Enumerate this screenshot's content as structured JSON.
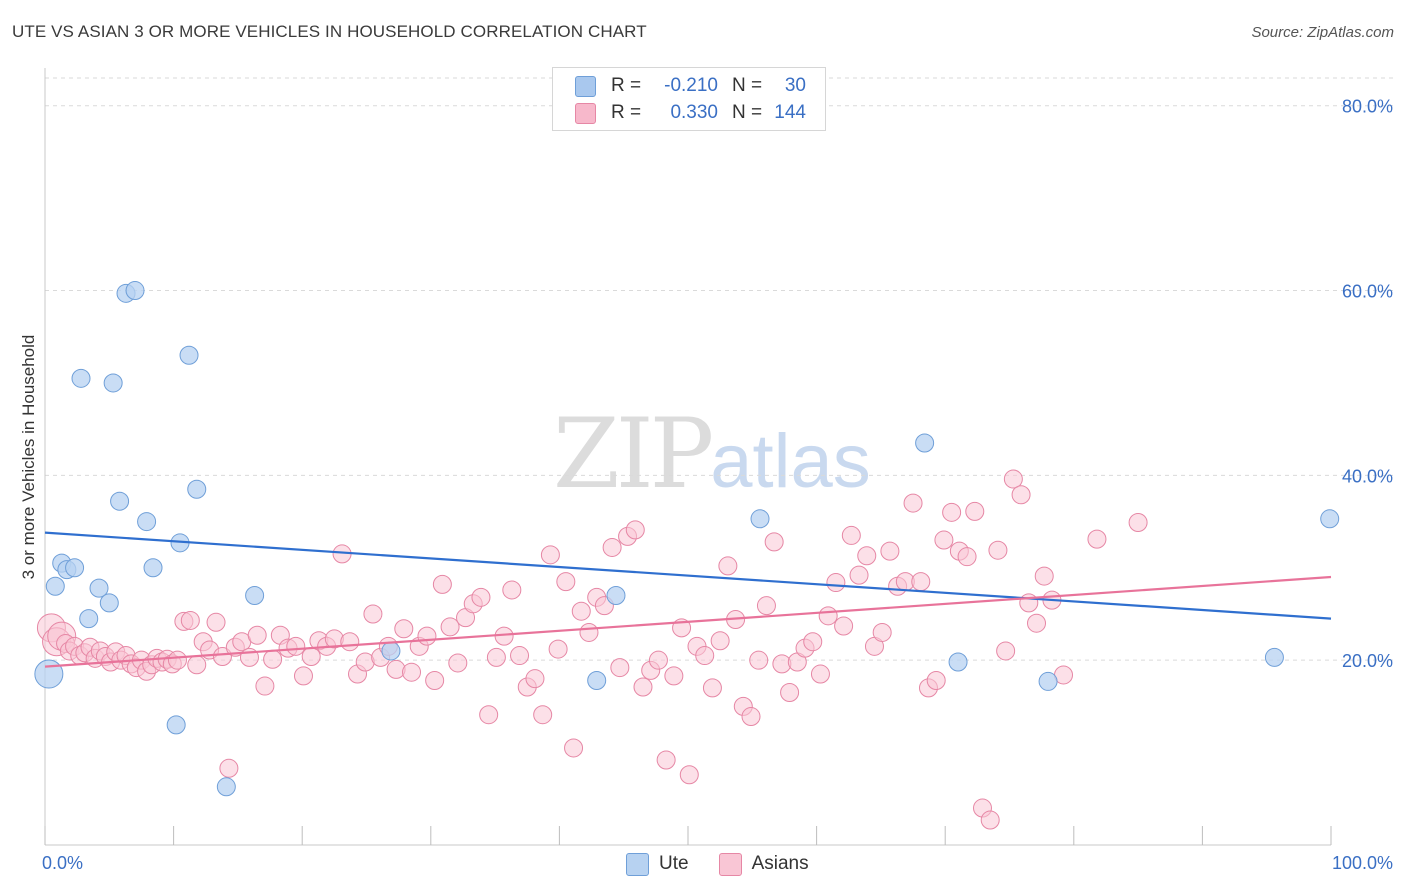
{
  "header": {
    "title": "UTE VS ASIAN 3 OR MORE VEHICLES IN HOUSEHOLD CORRELATION CHART",
    "source": "Source: ZipAtlas.com"
  },
  "watermark": {
    "zip": "ZIP",
    "atlas": "atlas"
  },
  "legend": {
    "rows": [
      {
        "r_label": "R =",
        "r_value": "-0.210",
        "n_label": "N =",
        "n_value": "30",
        "color": "#a9c8ee",
        "border": "#6f9fd8"
      },
      {
        "r_label": "R =",
        "r_value": "0.330",
        "n_label": "N =",
        "n_value": "144",
        "color": "#f7b8cb",
        "border": "#e687a5"
      }
    ]
  },
  "bottom_legend": [
    {
      "label": "Ute",
      "color": "#b7d2f1",
      "border": "#6f9fd8"
    },
    {
      "label": "Asians",
      "color": "#f9c6d5",
      "border": "#e687a5"
    }
  ],
  "chart_data": {
    "type": "scatter",
    "ylabel": "3 or more Vehicles in Household",
    "xlim": [
      0,
      100
    ],
    "ylim": [
      0,
      83
    ],
    "x_tick_labels": [
      "0.0%",
      "100.0%"
    ],
    "y_tick_labels": [
      "20.0%",
      "40.0%",
      "60.0%",
      "80.0%"
    ],
    "y_ticks": [
      20,
      40,
      60,
      80
    ],
    "grid": "horizontal dashed",
    "series": [
      {
        "name": "Ute",
        "color": "#6f9fd8",
        "fill": "#b7d2f1",
        "trend": {
          "start": [
            0,
            33.8
          ],
          "end": [
            100,
            24.5
          ],
          "color": "#2f6fcf"
        },
        "points": [
          [
            0.3,
            18.5
          ],
          [
            0.8,
            28.0
          ],
          [
            1.3,
            30.5
          ],
          [
            1.7,
            29.8
          ],
          [
            2.3,
            30.0
          ],
          [
            2.8,
            50.5
          ],
          [
            3.4,
            24.5
          ],
          [
            4.2,
            27.8
          ],
          [
            5.0,
            26.2
          ],
          [
            5.3,
            50.0
          ],
          [
            5.8,
            37.2
          ],
          [
            6.3,
            59.7
          ],
          [
            7.0,
            60.0
          ],
          [
            7.9,
            35.0
          ],
          [
            8.4,
            30.0
          ],
          [
            10.2,
            13.0
          ],
          [
            10.5,
            32.7
          ],
          [
            11.2,
            53.0
          ],
          [
            11.8,
            38.5
          ],
          [
            14.1,
            6.3
          ],
          [
            16.3,
            27.0
          ],
          [
            26.9,
            21.0
          ],
          [
            42.9,
            17.8
          ],
          [
            44.4,
            27.0
          ],
          [
            55.6,
            35.3
          ],
          [
            68.4,
            43.5
          ],
          [
            71.0,
            19.8
          ],
          [
            78.0,
            17.7
          ],
          [
            95.6,
            20.3
          ],
          [
            99.9,
            35.3
          ]
        ]
      },
      {
        "name": "Asians",
        "color": "#e687a5",
        "fill": "#f9c6d5",
        "trend": {
          "start": [
            0,
            19.3
          ],
          "end": [
            100,
            29.0
          ],
          "color": "#e8739a"
        },
        "points": [
          [
            0.5,
            23.5
          ],
          [
            0.9,
            22.0
          ],
          [
            1.3,
            22.6
          ],
          [
            1.6,
            21.8
          ],
          [
            1.9,
            21.0
          ],
          [
            2.3,
            21.5
          ],
          [
            2.7,
            20.5
          ],
          [
            3.1,
            20.8
          ],
          [
            3.5,
            21.4
          ],
          [
            3.9,
            20.2
          ],
          [
            4.3,
            21.0
          ],
          [
            4.7,
            20.4
          ],
          [
            5.1,
            19.8
          ],
          [
            5.5,
            20.9
          ],
          [
            5.9,
            20.0
          ],
          [
            6.3,
            20.5
          ],
          [
            6.7,
            19.6
          ],
          [
            7.1,
            19.2
          ],
          [
            7.5,
            20.0
          ],
          [
            7.9,
            18.8
          ],
          [
            8.3,
            19.5
          ],
          [
            8.7,
            20.2
          ],
          [
            9.1,
            19.8
          ],
          [
            9.5,
            20.1
          ],
          [
            9.9,
            19.6
          ],
          [
            10.3,
            20.0
          ],
          [
            10.8,
            24.2
          ],
          [
            11.3,
            24.3
          ],
          [
            11.8,
            19.5
          ],
          [
            12.3,
            22.0
          ],
          [
            12.8,
            21.1
          ],
          [
            13.3,
            24.1
          ],
          [
            13.8,
            20.4
          ],
          [
            14.3,
            8.3
          ],
          [
            14.8,
            21.4
          ],
          [
            15.3,
            22.0
          ],
          [
            15.9,
            20.3
          ],
          [
            16.5,
            22.7
          ],
          [
            17.1,
            17.2
          ],
          [
            17.7,
            20.1
          ],
          [
            18.3,
            22.7
          ],
          [
            18.9,
            21.3
          ],
          [
            19.5,
            21.5
          ],
          [
            20.1,
            18.3
          ],
          [
            20.7,
            20.4
          ],
          [
            21.3,
            22.1
          ],
          [
            21.9,
            21.5
          ],
          [
            22.5,
            22.3
          ],
          [
            23.1,
            31.5
          ],
          [
            23.7,
            22.0
          ],
          [
            24.3,
            18.5
          ],
          [
            24.9,
            19.8
          ],
          [
            25.5,
            25.0
          ],
          [
            26.1,
            20.3
          ],
          [
            26.7,
            21.5
          ],
          [
            27.3,
            19.0
          ],
          [
            27.9,
            23.4
          ],
          [
            28.5,
            18.7
          ],
          [
            29.1,
            21.5
          ],
          [
            29.7,
            22.6
          ],
          [
            30.3,
            17.8
          ],
          [
            30.9,
            28.2
          ],
          [
            31.5,
            23.6
          ],
          [
            32.1,
            19.7
          ],
          [
            32.7,
            24.6
          ],
          [
            33.3,
            26.1
          ],
          [
            33.9,
            26.8
          ],
          [
            34.5,
            14.1
          ],
          [
            35.1,
            20.3
          ],
          [
            35.7,
            22.6
          ],
          [
            36.3,
            27.6
          ],
          [
            36.9,
            20.5
          ],
          [
            37.5,
            17.1
          ],
          [
            38.1,
            18.0
          ],
          [
            38.7,
            14.1
          ],
          [
            39.3,
            31.4
          ],
          [
            39.9,
            21.2
          ],
          [
            40.5,
            28.5
          ],
          [
            41.1,
            10.5
          ],
          [
            41.7,
            25.3
          ],
          [
            42.3,
            23.0
          ],
          [
            42.9,
            26.8
          ],
          [
            43.5,
            25.9
          ],
          [
            44.1,
            32.2
          ],
          [
            44.7,
            19.2
          ],
          [
            45.3,
            33.4
          ],
          [
            45.9,
            34.1
          ],
          [
            46.5,
            17.1
          ],
          [
            47.1,
            18.9
          ],
          [
            47.7,
            20.0
          ],
          [
            48.3,
            9.2
          ],
          [
            48.9,
            18.3
          ],
          [
            49.5,
            23.5
          ],
          [
            50.1,
            7.6
          ],
          [
            50.7,
            21.5
          ],
          [
            51.3,
            20.5
          ],
          [
            51.9,
            17.0
          ],
          [
            52.5,
            22.1
          ],
          [
            53.1,
            30.2
          ],
          [
            53.7,
            24.4
          ],
          [
            54.3,
            15.0
          ],
          [
            54.9,
            13.9
          ],
          [
            55.5,
            20.0
          ],
          [
            56.1,
            25.9
          ],
          [
            56.7,
            32.8
          ],
          [
            57.3,
            19.6
          ],
          [
            57.9,
            16.5
          ],
          [
            58.5,
            19.8
          ],
          [
            59.1,
            21.3
          ],
          [
            59.7,
            22.0
          ],
          [
            60.3,
            18.5
          ],
          [
            60.9,
            24.8
          ],
          [
            61.5,
            28.4
          ],
          [
            62.1,
            23.7
          ],
          [
            62.7,
            33.5
          ],
          [
            63.3,
            29.2
          ],
          [
            63.9,
            31.3
          ],
          [
            64.5,
            21.5
          ],
          [
            65.1,
            23.0
          ],
          [
            65.7,
            31.8
          ],
          [
            66.3,
            28.0
          ],
          [
            66.9,
            28.5
          ],
          [
            67.5,
            37.0
          ],
          [
            68.1,
            28.5
          ],
          [
            68.7,
            17.0
          ],
          [
            69.3,
            17.8
          ],
          [
            69.9,
            33.0
          ],
          [
            70.5,
            36.0
          ],
          [
            71.1,
            31.8
          ],
          [
            71.7,
            31.2
          ],
          [
            72.3,
            36.1
          ],
          [
            72.9,
            4.0
          ],
          [
            73.5,
            2.7
          ],
          [
            74.1,
            31.9
          ],
          [
            74.7,
            21.0
          ],
          [
            75.3,
            39.6
          ],
          [
            75.9,
            37.9
          ],
          [
            76.5,
            26.2
          ],
          [
            77.1,
            24.0
          ],
          [
            77.7,
            29.1
          ],
          [
            78.3,
            26.5
          ],
          [
            79.2,
            18.4
          ],
          [
            81.8,
            33.1
          ],
          [
            85.0,
            34.9
          ]
        ]
      }
    ]
  }
}
